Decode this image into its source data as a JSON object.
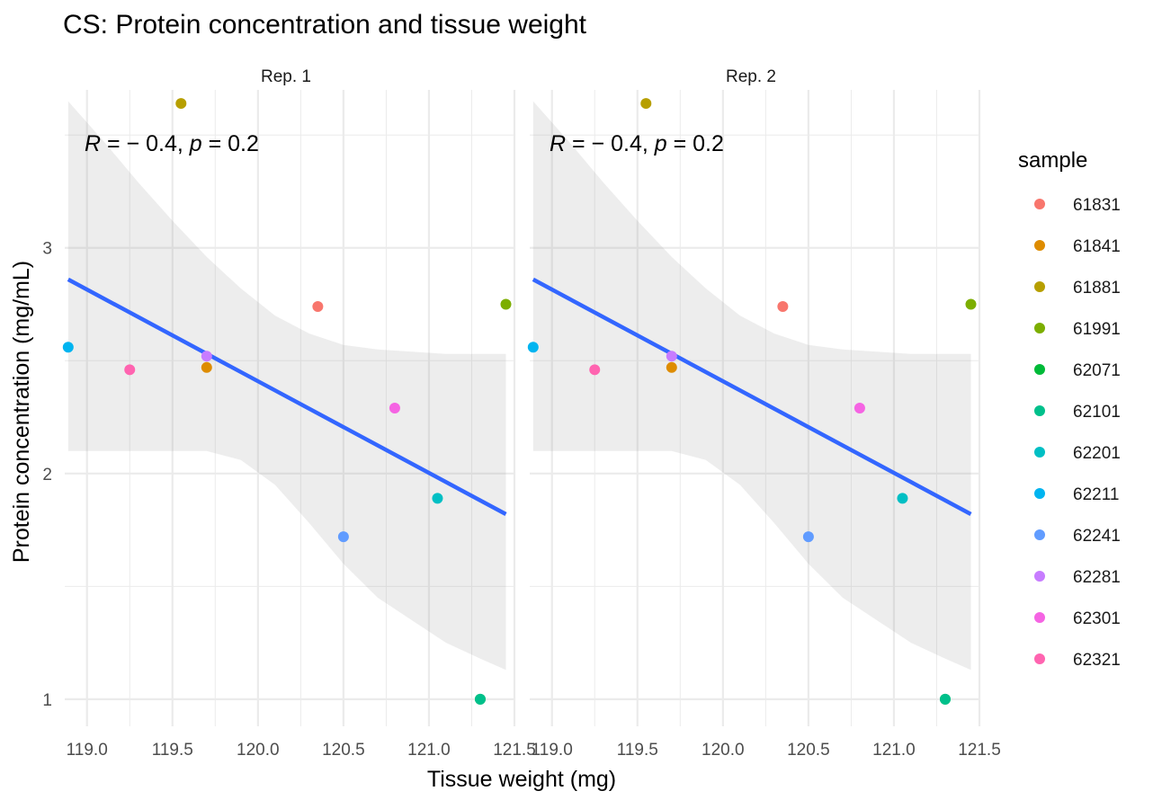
{
  "chart_data": {
    "type": "scatter",
    "title": "CS: Protein concentration and tissue weight",
    "xlabel": "Tissue weight (mg)",
    "ylabel": "Protein concentration (mg/mL)",
    "xlim": [
      118.87,
      121.5
    ],
    "ylim": [
      0.88,
      3.7
    ],
    "x_ticks": [
      119.0,
      119.5,
      120.0,
      120.5,
      121.0,
      121.5
    ],
    "x_tick_labels": [
      "119.0",
      "119.5",
      "120.0",
      "120.5",
      "121.0",
      "121.5"
    ],
    "y_ticks": [
      1,
      2,
      3
    ],
    "y_tick_labels": [
      "1",
      "2",
      "3"
    ],
    "grid": true,
    "legend_position": "right",
    "legend_title": "sample",
    "panels": [
      {
        "strip_label": "Rep. 1",
        "annotation": {
          "r_symbol": "R",
          "r_value": " = − 0.4, ",
          "p_symbol": "p",
          "p_value": " = 0.2"
        },
        "points": [
          {
            "sample": "61831",
            "x": 120.35,
            "y": 2.74
          },
          {
            "sample": "61841",
            "x": 119.7,
            "y": 2.47
          },
          {
            "sample": "61881",
            "x": 119.55,
            "y": 3.64
          },
          {
            "sample": "61991",
            "x": 121.45,
            "y": 2.75
          },
          {
            "sample": "62071",
            "x": 121.3,
            "y": 1.0
          },
          {
            "sample": "62101",
            "x": 121.3,
            "y": 1.0
          },
          {
            "sample": "62201",
            "x": 121.05,
            "y": 1.89
          },
          {
            "sample": "62211",
            "x": 118.89,
            "y": 2.56
          },
          {
            "sample": "62241",
            "x": 120.5,
            "y": 1.72
          },
          {
            "sample": "62281",
            "x": 119.7,
            "y": 2.52
          },
          {
            "sample": "62301",
            "x": 120.8,
            "y": 2.29
          },
          {
            "sample": "62321",
            "x": 119.25,
            "y": 2.46
          }
        ],
        "fit": {
          "x": [
            118.89,
            121.45
          ],
          "y": [
            2.86,
            1.82
          ]
        },
        "ci": {
          "x": [
            118.89,
            119.1,
            119.3,
            119.5,
            119.7,
            119.9,
            120.1,
            120.3,
            120.5,
            120.7,
            120.9,
            121.1,
            121.3,
            121.45
          ],
          "upper": [
            3.65,
            3.47,
            3.29,
            3.12,
            2.96,
            2.82,
            2.7,
            2.62,
            2.57,
            2.55,
            2.54,
            2.53,
            2.53,
            2.53
          ],
          "lower": [
            2.1,
            2.1,
            2.1,
            2.1,
            2.1,
            2.06,
            1.95,
            1.78,
            1.6,
            1.45,
            1.35,
            1.25,
            1.18,
            1.13
          ]
        }
      },
      {
        "strip_label": "Rep. 2",
        "annotation": {
          "r_symbol": "R",
          "r_value": " = − 0.4, ",
          "p_symbol": "p",
          "p_value": " = 0.2"
        },
        "points": [
          {
            "sample": "61831",
            "x": 120.35,
            "y": 2.74
          },
          {
            "sample": "61841",
            "x": 119.7,
            "y": 2.47
          },
          {
            "sample": "61881",
            "x": 119.55,
            "y": 3.64
          },
          {
            "sample": "61991",
            "x": 121.45,
            "y": 2.75
          },
          {
            "sample": "62071",
            "x": 121.3,
            "y": 1.0
          },
          {
            "sample": "62101",
            "x": 121.3,
            "y": 1.0
          },
          {
            "sample": "62201",
            "x": 121.05,
            "y": 1.89
          },
          {
            "sample": "62211",
            "x": 118.89,
            "y": 2.56
          },
          {
            "sample": "62241",
            "x": 120.5,
            "y": 1.72
          },
          {
            "sample": "62281",
            "x": 119.7,
            "y": 2.52
          },
          {
            "sample": "62301",
            "x": 120.8,
            "y": 2.29
          },
          {
            "sample": "62321",
            "x": 119.25,
            "y": 2.46
          }
        ],
        "fit": {
          "x": [
            118.89,
            121.45
          ],
          "y": [
            2.86,
            1.82
          ]
        },
        "ci": {
          "x": [
            118.89,
            119.1,
            119.3,
            119.5,
            119.7,
            119.9,
            120.1,
            120.3,
            120.5,
            120.7,
            120.9,
            121.1,
            121.3,
            121.45
          ],
          "upper": [
            3.65,
            3.47,
            3.29,
            3.12,
            2.96,
            2.82,
            2.7,
            2.62,
            2.57,
            2.55,
            2.54,
            2.53,
            2.53,
            2.53
          ],
          "lower": [
            2.1,
            2.1,
            2.1,
            2.1,
            2.1,
            2.06,
            1.95,
            1.78,
            1.6,
            1.45,
            1.35,
            1.25,
            1.18,
            1.13
          ]
        }
      }
    ],
    "legend": [
      {
        "label": "61831",
        "color": "#F8766D"
      },
      {
        "label": "61841",
        "color": "#DE8C00"
      },
      {
        "label": "61881",
        "color": "#B79F00"
      },
      {
        "label": "61991",
        "color": "#7CAE00"
      },
      {
        "label": "62071",
        "color": "#00BA38"
      },
      {
        "label": "62101",
        "color": "#00C08B"
      },
      {
        "label": "62201",
        "color": "#00BFC4"
      },
      {
        "label": "62211",
        "color": "#00B4F0"
      },
      {
        "label": "62241",
        "color": "#619CFF"
      },
      {
        "label": "62281",
        "color": "#C77CFF"
      },
      {
        "label": "62301",
        "color": "#F564E3"
      },
      {
        "label": "62321",
        "color": "#FF64B0"
      }
    ],
    "colors": {
      "fit_line": "#3366FF",
      "ci_band": "#EBEBEB",
      "grid": "#EBEBEB"
    }
  }
}
